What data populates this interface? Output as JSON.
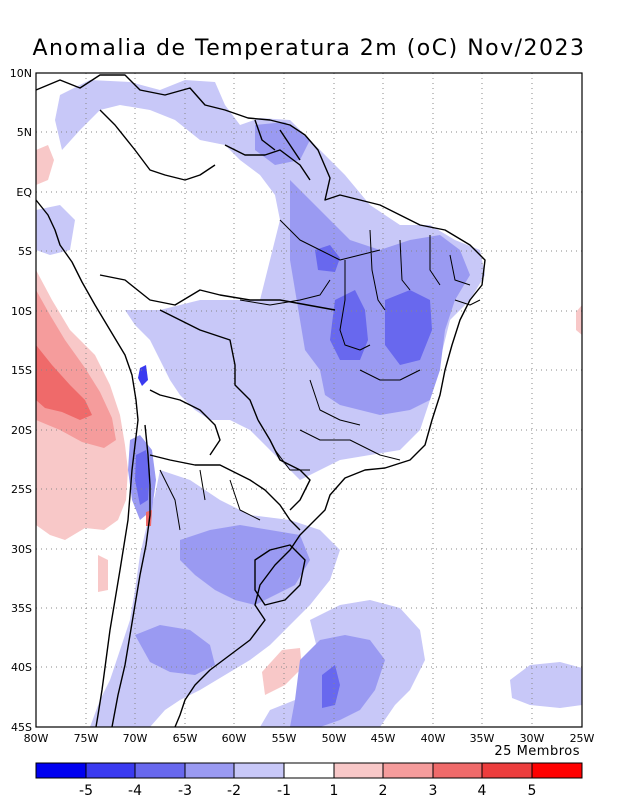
{
  "title": "Anomalia de Temperatura 2m (oC) Nov/2023",
  "members_label": "25 Membros",
  "map": {
    "lat_labels": [
      "10N",
      "5N",
      "EQ",
      "5S",
      "10S",
      "15S",
      "20S",
      "25S",
      "30S",
      "35S",
      "40S",
      "45S"
    ],
    "lon_labels": [
      "80W",
      "75W",
      "70W",
      "65W",
      "60W",
      "55W",
      "50W",
      "45W",
      "40W",
      "35W",
      "30W",
      "25W"
    ],
    "lat_range": [
      -45,
      10
    ],
    "lon_range": [
      -80,
      -25
    ],
    "grid": true,
    "grid_style": "dotted",
    "colors": {
      "ocean_land_background": "#ffffff",
      "border": "#000000"
    }
  },
  "colorbar": {
    "labels": [
      "-5",
      "-4",
      "-3",
      "-2",
      "-1",
      "1",
      "2",
      "3",
      "4",
      "5"
    ],
    "colors": [
      "#0000f0",
      "#3a3af0",
      "#6868ee",
      "#9a9af2",
      "#c8c8f8",
      "#ffffff",
      "#f8c8c8",
      "#f59c9c",
      "#ef6a6a",
      "#ec3d3d",
      "#ff0000"
    ]
  }
}
